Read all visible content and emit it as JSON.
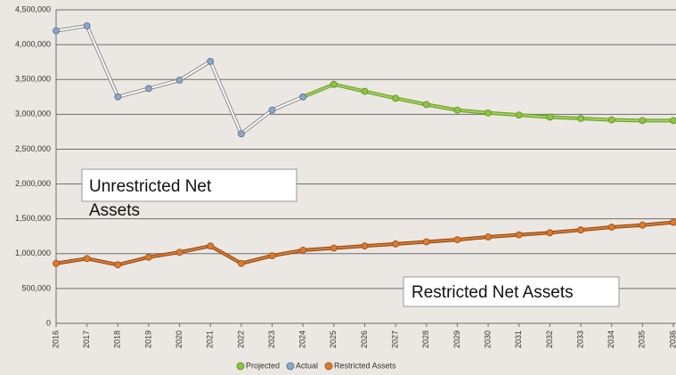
{
  "chart_data": {
    "type": "line",
    "categories": [
      "2016",
      "2017",
      "2018",
      "2019",
      "2020",
      "2021",
      "2022",
      "2023",
      "2024",
      "2025",
      "2026",
      "2027",
      "2028",
      "2029",
      "2030",
      "2031",
      "2032",
      "2033",
      "2034",
      "2035",
      "2036"
    ],
    "series": [
      {
        "name": "Projected",
        "color": "#8cc63f",
        "values": [
          null,
          null,
          null,
          null,
          null,
          null,
          null,
          null,
          3250000,
          3430000,
          3330000,
          3230000,
          3140000,
          3060000,
          3020000,
          2990000,
          2960000,
          2940000,
          2920000,
          2910000,
          2910000
        ]
      },
      {
        "name": "Actual",
        "color": "#8fa7c4",
        "values": [
          4200000,
          4270000,
          3250000,
          3370000,
          3490000,
          3760000,
          2720000,
          3060000,
          3250000,
          null,
          null,
          null,
          null,
          null,
          null,
          null,
          null,
          null,
          null,
          null,
          null
        ]
      },
      {
        "name": "Restricted Assets",
        "color": "#dd7a2e",
        "values": [
          860000,
          930000,
          840000,
          950000,
          1020000,
          1110000,
          860000,
          970000,
          1050000,
          1080000,
          1110000,
          1140000,
          1170000,
          1200000,
          1240000,
          1270000,
          1300000,
          1340000,
          1380000,
          1410000,
          1450000
        ]
      }
    ],
    "ylim": [
      0,
      4500000
    ],
    "yticks": [
      0,
      {
        "value": 500000,
        "label": "500,000"
      },
      {
        "value": 1000000,
        "label": "1,000,000"
      },
      {
        "value": 1500000,
        "label": "1,500,000"
      },
      {
        "value": 2000000,
        "label": "2,000,000"
      },
      {
        "value": 2500000,
        "label": "2,500,000"
      },
      {
        "value": 3000000,
        "label": "3,000,000"
      },
      {
        "value": 3500000,
        "label": "3,500,000"
      },
      {
        "value": 4000000,
        "label": "4,000,000"
      },
      {
        "value": 4500000,
        "label": "4,500,000"
      }
    ],
    "grid": true,
    "legend": "bottom",
    "annotations": [
      "Unrestricted Net Assets",
      "Restricted Net Assets"
    ]
  }
}
